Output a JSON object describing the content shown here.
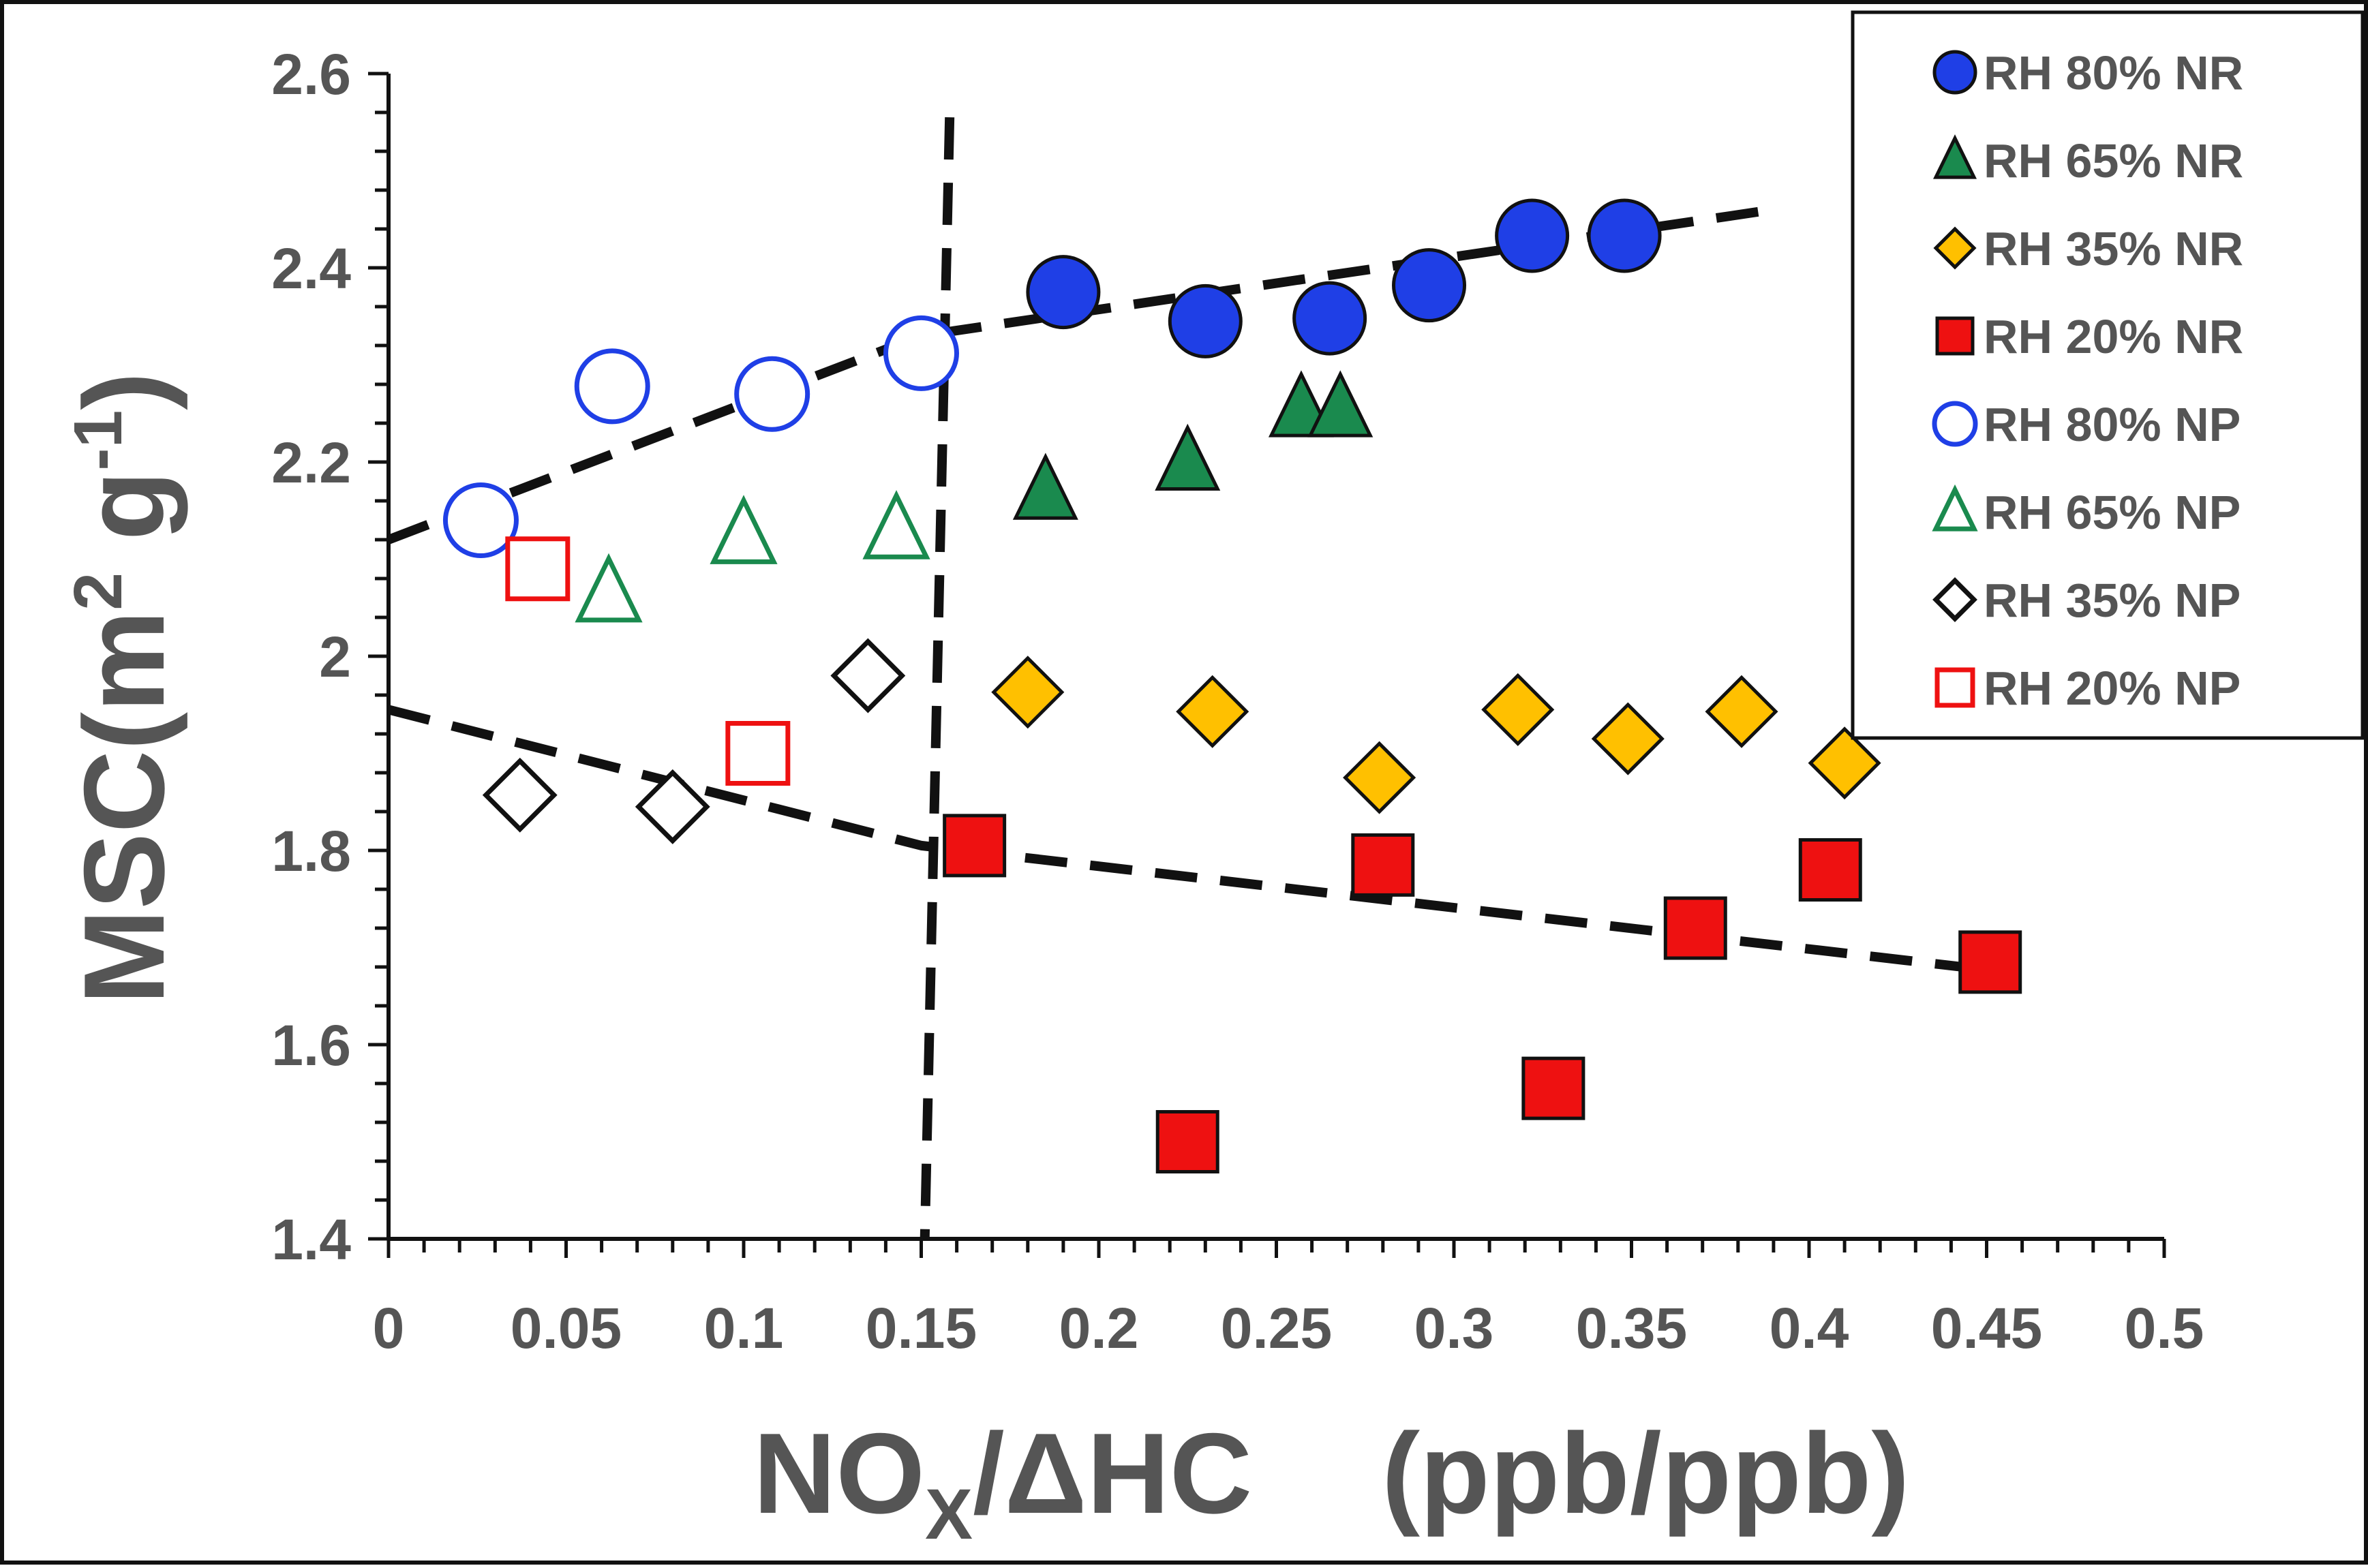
{
  "chart_data": {
    "type": "scatter",
    "xlabel": {
      "main": "NO",
      "subscript": "X",
      "rest": "/ΔHC",
      "units": "(ppb/ppb)"
    },
    "ylabel": {
      "main": "MSC(m",
      "sup1": "2",
      "mid": " g",
      "sup2": "-1",
      "end": ")"
    },
    "xlim": [
      0,
      0.5
    ],
    "ylim": [
      1.4,
      2.6
    ],
    "x_ticks": [
      "0",
      "0.05",
      "0.1",
      "0.15",
      "0.2",
      "0.25",
      "0.3",
      "0.35",
      "0.4",
      "0.45",
      "0.5"
    ],
    "y_ticks": [
      "1.4",
      "1.6",
      "1.8",
      "2",
      "2.2",
      "2.4",
      "2.6"
    ],
    "legend_position": "top-right",
    "series": [
      {
        "name": "RH 80% NR",
        "marker": "circle",
        "filled": true,
        "color": "#1f3fe6",
        "points": [
          [
            0.19,
            2.375
          ],
          [
            0.23,
            2.345
          ],
          [
            0.265,
            2.348
          ],
          [
            0.293,
            2.382
          ],
          [
            0.322,
            2.433
          ],
          [
            0.348,
            2.433
          ]
        ]
      },
      {
        "name": "RH 65% NR",
        "marker": "triangle",
        "filled": true,
        "color": "#1a8a4e",
        "points": [
          [
            0.185,
            2.17
          ],
          [
            0.225,
            2.2
          ],
          [
            0.257,
            2.255
          ],
          [
            0.268,
            2.255
          ]
        ]
      },
      {
        "name": "RH 35% NR",
        "marker": "diamond",
        "filled": true,
        "color": "#ffc000",
        "points": [
          [
            0.18,
            1.963
          ],
          [
            0.232,
            1.943
          ],
          [
            0.279,
            1.875
          ],
          [
            0.318,
            1.945
          ],
          [
            0.349,
            1.915
          ],
          [
            0.381,
            1.943
          ],
          [
            0.41,
            1.89
          ]
        ]
      },
      {
        "name": "RH 20% NR",
        "marker": "square",
        "filled": true,
        "color": "#ee1111",
        "points": [
          [
            0.165,
            1.805
          ],
          [
            0.225,
            1.5
          ],
          [
            0.28,
            1.785
          ],
          [
            0.328,
            1.555
          ],
          [
            0.368,
            1.72
          ],
          [
            0.406,
            1.78
          ],
          [
            0.451,
            1.685
          ]
        ]
      },
      {
        "name": "RH 80% NP",
        "marker": "circle",
        "filled": false,
        "color": "#1f3fe6",
        "points": [
          [
            0.026,
            2.14
          ],
          [
            0.063,
            2.278
          ],
          [
            0.108,
            2.27
          ],
          [
            0.15,
            2.312
          ]
        ]
      },
      {
        "name": "RH 65% NP",
        "marker": "triangle",
        "filled": false,
        "color": "#1a8a4e",
        "points": [
          [
            0.062,
            2.065
          ],
          [
            0.1,
            2.125
          ],
          [
            0.143,
            2.13
          ]
        ]
      },
      {
        "name": "RH 35% NP",
        "marker": "diamond",
        "filled": false,
        "color": "#111111",
        "points": [
          [
            0.037,
            1.857
          ],
          [
            0.08,
            1.845
          ],
          [
            0.135,
            1.98
          ]
        ]
      },
      {
        "name": "RH 20% NP",
        "marker": "square",
        "filled": false,
        "color": "#ee1111",
        "points": [
          [
            0.042,
            2.09
          ],
          [
            0.104,
            1.9
          ]
        ]
      }
    ],
    "trend_lines": [
      {
        "name": "upper-trend",
        "points": [
          [
            0,
            2.12
          ],
          [
            0.15,
            2.33
          ],
          [
            0.39,
            2.46
          ]
        ]
      },
      {
        "name": "lower-trend",
        "points": [
          [
            0,
            1.945
          ],
          [
            0.15,
            1.805
          ],
          [
            0.455,
            1.675
          ]
        ]
      },
      {
        "name": "vertical-divider",
        "points": [
          [
            0.158,
            2.555
          ],
          [
            0.151,
            1.4
          ]
        ]
      }
    ]
  }
}
